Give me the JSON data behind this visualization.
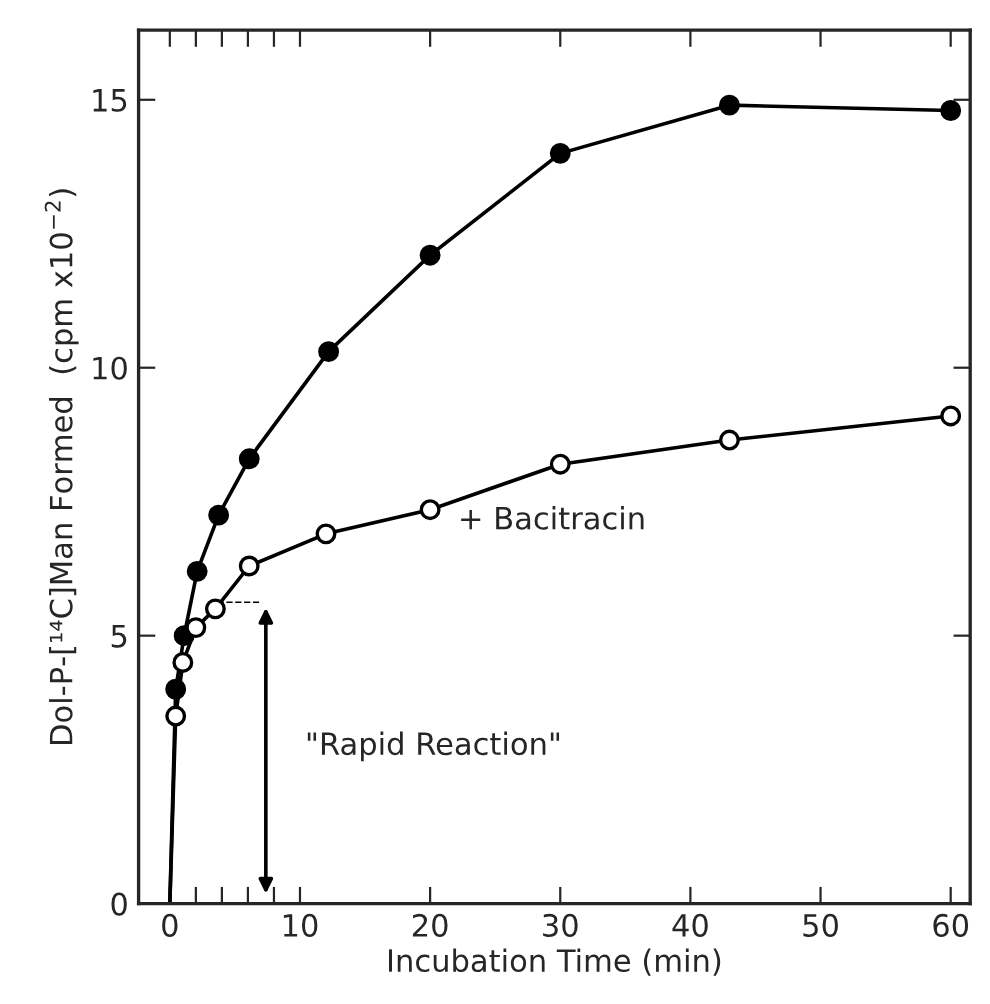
{
  "chart_data": {
    "type": "line",
    "xlabel": "Incubation Time (min)",
    "ylabel": "Dol-P-[¹⁴C]Man Formed  (cpm x10$^{−2}$)",
    "series": [
      {
        "color": "#000000",
        "marker": "none",
        "x": [
          0,
          0.45,
          1.1,
          2.1,
          3.75,
          6.1,
          12.2,
          20,
          30,
          43,
          60
        ],
        "values": [
          0,
          4.0,
          5.0,
          6.2,
          7.25,
          8.3,
          10.3,
          12.1,
          14.0,
          14.9,
          14.8
        ]
      },
      {
        "color": "#000000",
        "marker": "none",
        "x": [
          0,
          0.45,
          1,
          2,
          3.5,
          6.1,
          12,
          20,
          30,
          43,
          60
        ],
        "values": [
          0,
          3.5,
          4.5,
          5.15,
          5.5,
          6.3,
          6.9,
          7.35,
          8.2,
          8.65,
          9.1
        ]
      },
      {
        "type": "scatter",
        "color": "#000000",
        "marker": "circle",
        "x": [
          0.45,
          1.1,
          2.1,
          3.75,
          6.1,
          12.2,
          20,
          30,
          43,
          60
        ],
        "values": [
          4.0,
          5.0,
          6.2,
          7.25,
          8.3,
          10.3,
          12.1,
          14.0,
          14.9,
          14.8
        ]
      },
      {
        "type": "scatter",
        "name": "+ Bacitracin",
        "color": "#ffffff",
        "marker": "circle",
        "x": [
          0.45,
          1,
          2,
          3.5,
          6.1,
          12,
          20,
          30,
          43,
          60
        ],
        "values": [
          3.5,
          4.5,
          5.15,
          5.5,
          6.3,
          6.9,
          7.35,
          8.2,
          8.65,
          9.1
        ]
      }
    ],
    "annotations": [
      "\"Rapid Reaction\""
    ],
    "xlim": [
      -2.4,
      61.5
    ],
    "xticks": [
      0,
      {
        "value": 2,
        "label": null
      },
      {
        "value": 4,
        "label": null
      },
      {
        "value": 6,
        "label": null
      },
      {
        "value": 8,
        "label": null
      },
      10,
      20,
      30,
      40,
      50,
      60
    ],
    "ylim": [
      0,
      16.3
    ],
    "yticks": [
      0,
      5,
      10,
      15
    ],
    "grid": false,
    "legend": false
  }
}
